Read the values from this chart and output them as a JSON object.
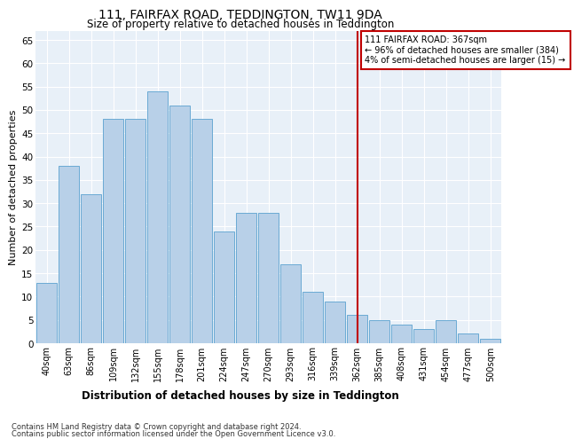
{
  "title1": "111, FAIRFAX ROAD, TEDDINGTON, TW11 9DA",
  "title2": "Size of property relative to detached houses in Teddington",
  "xlabel": "Distribution of detached houses by size in Teddington",
  "ylabel": "Number of detached properties",
  "bar_labels": [
    "40sqm",
    "63sqm",
    "86sqm",
    "109sqm",
    "132sqm",
    "155sqm",
    "178sqm",
    "201sqm",
    "224sqm",
    "247sqm",
    "270sqm",
    "293sqm",
    "316sqm",
    "339sqm",
    "362sqm",
    "385sqm",
    "408sqm",
    "431sqm",
    "454sqm",
    "477sqm",
    "500sqm"
  ],
  "bar_values": [
    13,
    38,
    32,
    48,
    48,
    54,
    51,
    48,
    24,
    28,
    28,
    17,
    11,
    9,
    6,
    5,
    4,
    3,
    5,
    2,
    1
  ],
  "bar_color": "#b8d0e8",
  "bar_edge_color": "#6aaad4",
  "background_color": "#e8f0f8",
  "grid_color": "#ffffff",
  "vline_x_index": 14,
  "vline_color": "#c00000",
  "annotation_text": "111 FAIRFAX ROAD: 367sqm\n← 96% of detached houses are smaller (384)\n4% of semi-detached houses are larger (15) →",
  "annotation_box_color": "#c00000",
  "ylim": [
    0,
    67
  ],
  "yticks": [
    0,
    5,
    10,
    15,
    20,
    25,
    30,
    35,
    40,
    45,
    50,
    55,
    60,
    65
  ],
  "footer1": "Contains HM Land Registry data © Crown copyright and database right 2024.",
  "footer2": "Contains public sector information licensed under the Open Government Licence v3.0."
}
